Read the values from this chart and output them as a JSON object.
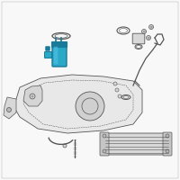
{
  "bg_color": "#f8f8f8",
  "line_color": "#555555",
  "highlight_color": "#29a8c8",
  "highlight_color2": "#1a7a9a",
  "highlight_color3": "#5bc8e8",
  "fig_bg": "#f8f8f8",
  "tank_fill": "#e8e8e8",
  "part_fill": "#d8d8d8",
  "dark_fill": "#aaaaaa"
}
